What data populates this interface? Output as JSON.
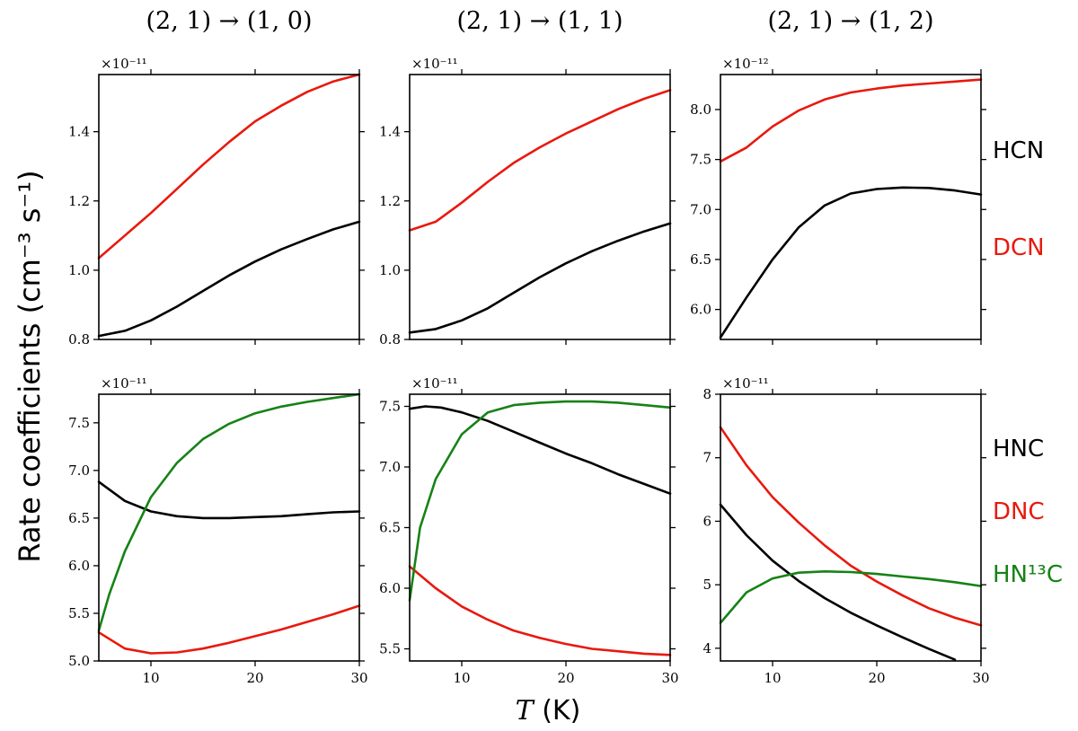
{
  "figure": {
    "ylabel": "Rate coefficients (cm⁻³ s⁻¹)",
    "xlabel_symbol": "T",
    "xlabel_unit": " (K)"
  },
  "chart_data": [
    {
      "type": "line",
      "title": "(2, 1) → (1, 0)",
      "multiplier": "×10⁻¹¹",
      "xlim": [
        5,
        30
      ],
      "ylim": [
        0.8,
        1.565
      ],
      "x_ticks": [
        10,
        20,
        30
      ],
      "y_ticks": [
        "0.8",
        "1.0",
        "1.2",
        "1.4"
      ],
      "show_x_tick_labels": false,
      "series": [
        {
          "name": "HCN",
          "color": "#000000",
          "x": [
            5,
            7.5,
            10,
            12.5,
            15,
            17.5,
            20,
            22.5,
            25,
            27.5,
            30
          ],
          "y": [
            0.81,
            0.825,
            0.855,
            0.895,
            0.94,
            0.985,
            1.025,
            1.06,
            1.09,
            1.118,
            1.14
          ]
        },
        {
          "name": "DCN",
          "color": "#e8190e",
          "x": [
            5,
            7.5,
            10,
            12.5,
            15,
            17.5,
            20,
            22.5,
            25,
            27.5,
            30
          ],
          "y": [
            1.035,
            1.1,
            1.165,
            1.235,
            1.305,
            1.37,
            1.43,
            1.475,
            1.515,
            1.545,
            1.565
          ]
        }
      ]
    },
    {
      "type": "line",
      "title": "(2, 1) → (1, 1)",
      "multiplier": "×10⁻¹¹",
      "xlim": [
        5,
        30
      ],
      "ylim": [
        0.8,
        1.565
      ],
      "x_ticks": [
        10,
        20,
        30
      ],
      "y_ticks": [
        "0.8",
        "1.0",
        "1.2",
        "1.4"
      ],
      "show_x_tick_labels": false,
      "series": [
        {
          "name": "HCN",
          "color": "#000000",
          "x": [
            5,
            7.5,
            10,
            12.5,
            15,
            17.5,
            20,
            22.5,
            25,
            27.5,
            30
          ],
          "y": [
            0.82,
            0.83,
            0.855,
            0.89,
            0.935,
            0.98,
            1.02,
            1.055,
            1.085,
            1.112,
            1.135
          ]
        },
        {
          "name": "DCN",
          "color": "#e8190e",
          "x": [
            5,
            7.5,
            10,
            12.5,
            15,
            17.5,
            20,
            22.5,
            25,
            27.5,
            30
          ],
          "y": [
            1.115,
            1.14,
            1.195,
            1.255,
            1.31,
            1.355,
            1.395,
            1.43,
            1.465,
            1.495,
            1.52
          ]
        }
      ]
    },
    {
      "type": "line",
      "title": "(2, 1) → (1, 2)",
      "multiplier": "×10⁻¹²",
      "xlim": [
        5,
        30
      ],
      "ylim": [
        5.7,
        8.35
      ],
      "x_ticks": [
        10,
        20,
        30
      ],
      "y_ticks": [
        "6.0",
        "6.5",
        "7.0",
        "7.5",
        "8.0"
      ],
      "show_x_tick_labels": false,
      "series": [
        {
          "name": "HCN",
          "color": "#000000",
          "x": [
            5,
            7.5,
            10,
            12.5,
            15,
            17.5,
            20,
            22.5,
            25,
            27.5,
            30
          ],
          "y": [
            5.72,
            6.12,
            6.5,
            6.82,
            7.04,
            7.16,
            7.205,
            7.22,
            7.215,
            7.19,
            7.15
          ]
        },
        {
          "name": "DCN",
          "color": "#e8190e",
          "x": [
            5,
            7.5,
            10,
            12.5,
            15,
            17.5,
            20,
            22.5,
            25,
            27.5,
            30
          ],
          "y": [
            7.48,
            7.62,
            7.83,
            7.99,
            8.1,
            8.17,
            8.21,
            8.24,
            8.26,
            8.28,
            8.3
          ]
        }
      ]
    },
    {
      "type": "line",
      "title": "",
      "multiplier": "×10⁻¹¹",
      "xlim": [
        5,
        30
      ],
      "ylim": [
        5.0,
        7.8
      ],
      "x_ticks": [
        10,
        20,
        30
      ],
      "y_ticks": [
        "5.0",
        "5.5",
        "6.0",
        "6.5",
        "7.0",
        "7.5"
      ],
      "show_x_tick_labels": true,
      "series": [
        {
          "name": "HNC",
          "color": "#000000",
          "x": [
            5,
            7.5,
            10,
            12.5,
            15,
            17.5,
            20,
            22.5,
            25,
            27.5,
            30
          ],
          "y": [
            6.88,
            6.68,
            6.57,
            6.52,
            6.5,
            6.5,
            6.51,
            6.52,
            6.54,
            6.56,
            6.57
          ]
        },
        {
          "name": "DNC",
          "color": "#e8190e",
          "x": [
            5,
            7.5,
            10,
            12.5,
            15,
            17.5,
            20,
            22.5,
            25,
            27.5,
            30
          ],
          "y": [
            5.3,
            5.13,
            5.08,
            5.09,
            5.13,
            5.19,
            5.26,
            5.33,
            5.41,
            5.49,
            5.58
          ]
        },
        {
          "name": "HN¹³C",
          "color": "#168216",
          "x": [
            5,
            6,
            7.5,
            10,
            12.5,
            15,
            17.5,
            20,
            22.5,
            25,
            27.5,
            30
          ],
          "y": [
            5.32,
            5.7,
            6.15,
            6.72,
            7.08,
            7.33,
            7.49,
            7.6,
            7.67,
            7.72,
            7.76,
            7.8
          ]
        }
      ]
    },
    {
      "type": "line",
      "title": "",
      "multiplier": "×10⁻¹¹",
      "xlim": [
        5,
        30
      ],
      "ylim": [
        5.4,
        7.6
      ],
      "x_ticks": [
        10,
        20,
        30
      ],
      "y_ticks": [
        "5.5",
        "6.0",
        "6.5",
        "7.0",
        "7.5"
      ],
      "show_x_tick_labels": true,
      "series": [
        {
          "name": "HNC",
          "color": "#000000",
          "x": [
            5,
            6.5,
            8,
            10,
            12.5,
            15,
            17.5,
            20,
            22.5,
            25,
            27.5,
            30
          ],
          "y": [
            7.48,
            7.5,
            7.49,
            7.45,
            7.38,
            7.29,
            7.2,
            7.11,
            7.03,
            6.94,
            6.86,
            6.78
          ]
        },
        {
          "name": "DNC",
          "color": "#e8190e",
          "x": [
            5,
            7.5,
            10,
            12.5,
            15,
            17.5,
            20,
            22.5,
            25,
            27.5,
            30
          ],
          "y": [
            6.18,
            6.0,
            5.85,
            5.74,
            5.65,
            5.59,
            5.54,
            5.5,
            5.48,
            5.46,
            5.45
          ]
        },
        {
          "name": "HN¹³C",
          "color": "#168216",
          "x": [
            5,
            6,
            7.5,
            10,
            12.5,
            15,
            17.5,
            20,
            22.5,
            25,
            27.5,
            30
          ],
          "y": [
            5.9,
            6.5,
            6.9,
            7.27,
            7.45,
            7.51,
            7.53,
            7.54,
            7.54,
            7.53,
            7.51,
            7.49
          ]
        }
      ]
    },
    {
      "type": "line",
      "title": "",
      "multiplier": "×10⁻¹¹",
      "xlim": [
        5,
        30
      ],
      "ylim": [
        3.8,
        8.0
      ],
      "x_ticks": [
        10,
        20,
        30
      ],
      "y_ticks": [
        "4",
        "5",
        "6",
        "7",
        "8"
      ],
      "show_x_tick_labels": true,
      "series": [
        {
          "name": "HNC",
          "color": "#000000",
          "x": [
            5,
            7.5,
            10,
            12.5,
            15,
            17.5,
            20,
            22.5,
            25,
            27.5
          ],
          "y": [
            6.26,
            5.78,
            5.38,
            5.06,
            4.79,
            4.56,
            4.36,
            4.17,
            3.99,
            3.82
          ]
        },
        {
          "name": "DNC",
          "color": "#e8190e",
          "x": [
            5,
            7.5,
            10,
            12.5,
            15,
            17.5,
            20,
            22.5,
            25,
            27.5,
            30
          ],
          "y": [
            7.48,
            6.88,
            6.38,
            5.98,
            5.62,
            5.3,
            5.05,
            4.83,
            4.63,
            4.48,
            4.36
          ]
        },
        {
          "name": "HN¹³C",
          "color": "#168216",
          "x": [
            5,
            7.5,
            10,
            12.5,
            15,
            17.5,
            20,
            22.5,
            25,
            27.5,
            30
          ],
          "y": [
            4.4,
            4.88,
            5.1,
            5.19,
            5.21,
            5.2,
            5.17,
            5.13,
            5.09,
            5.04,
            4.98
          ]
        }
      ]
    }
  ],
  "species_labels": [
    {
      "text": "HCN",
      "color": "#000000"
    },
    {
      "text": "DCN",
      "color": "#e8190e"
    },
    {
      "text": "HNC",
      "color": "#000000"
    },
    {
      "text": "DNC",
      "color": "#e8190e"
    },
    {
      "text": "HN¹³C",
      "color": "#168216"
    }
  ]
}
